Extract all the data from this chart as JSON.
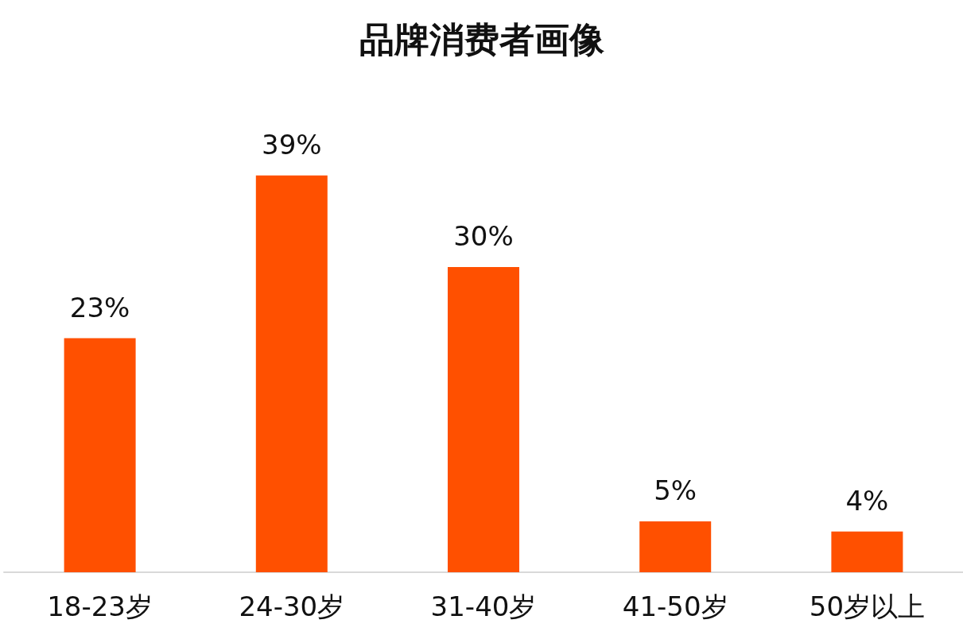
{
  "chart_data": {
    "type": "bar",
    "title": "品牌消费者画像",
    "categories": [
      "18-23岁",
      "24-30岁",
      "31-40岁",
      "41-50岁",
      "50岁以上"
    ],
    "values": [
      23,
      39,
      30,
      5,
      4
    ],
    "value_labels": [
      "23%",
      "39%",
      "30%",
      "5%",
      "4%"
    ],
    "color": "#ff5000"
  }
}
